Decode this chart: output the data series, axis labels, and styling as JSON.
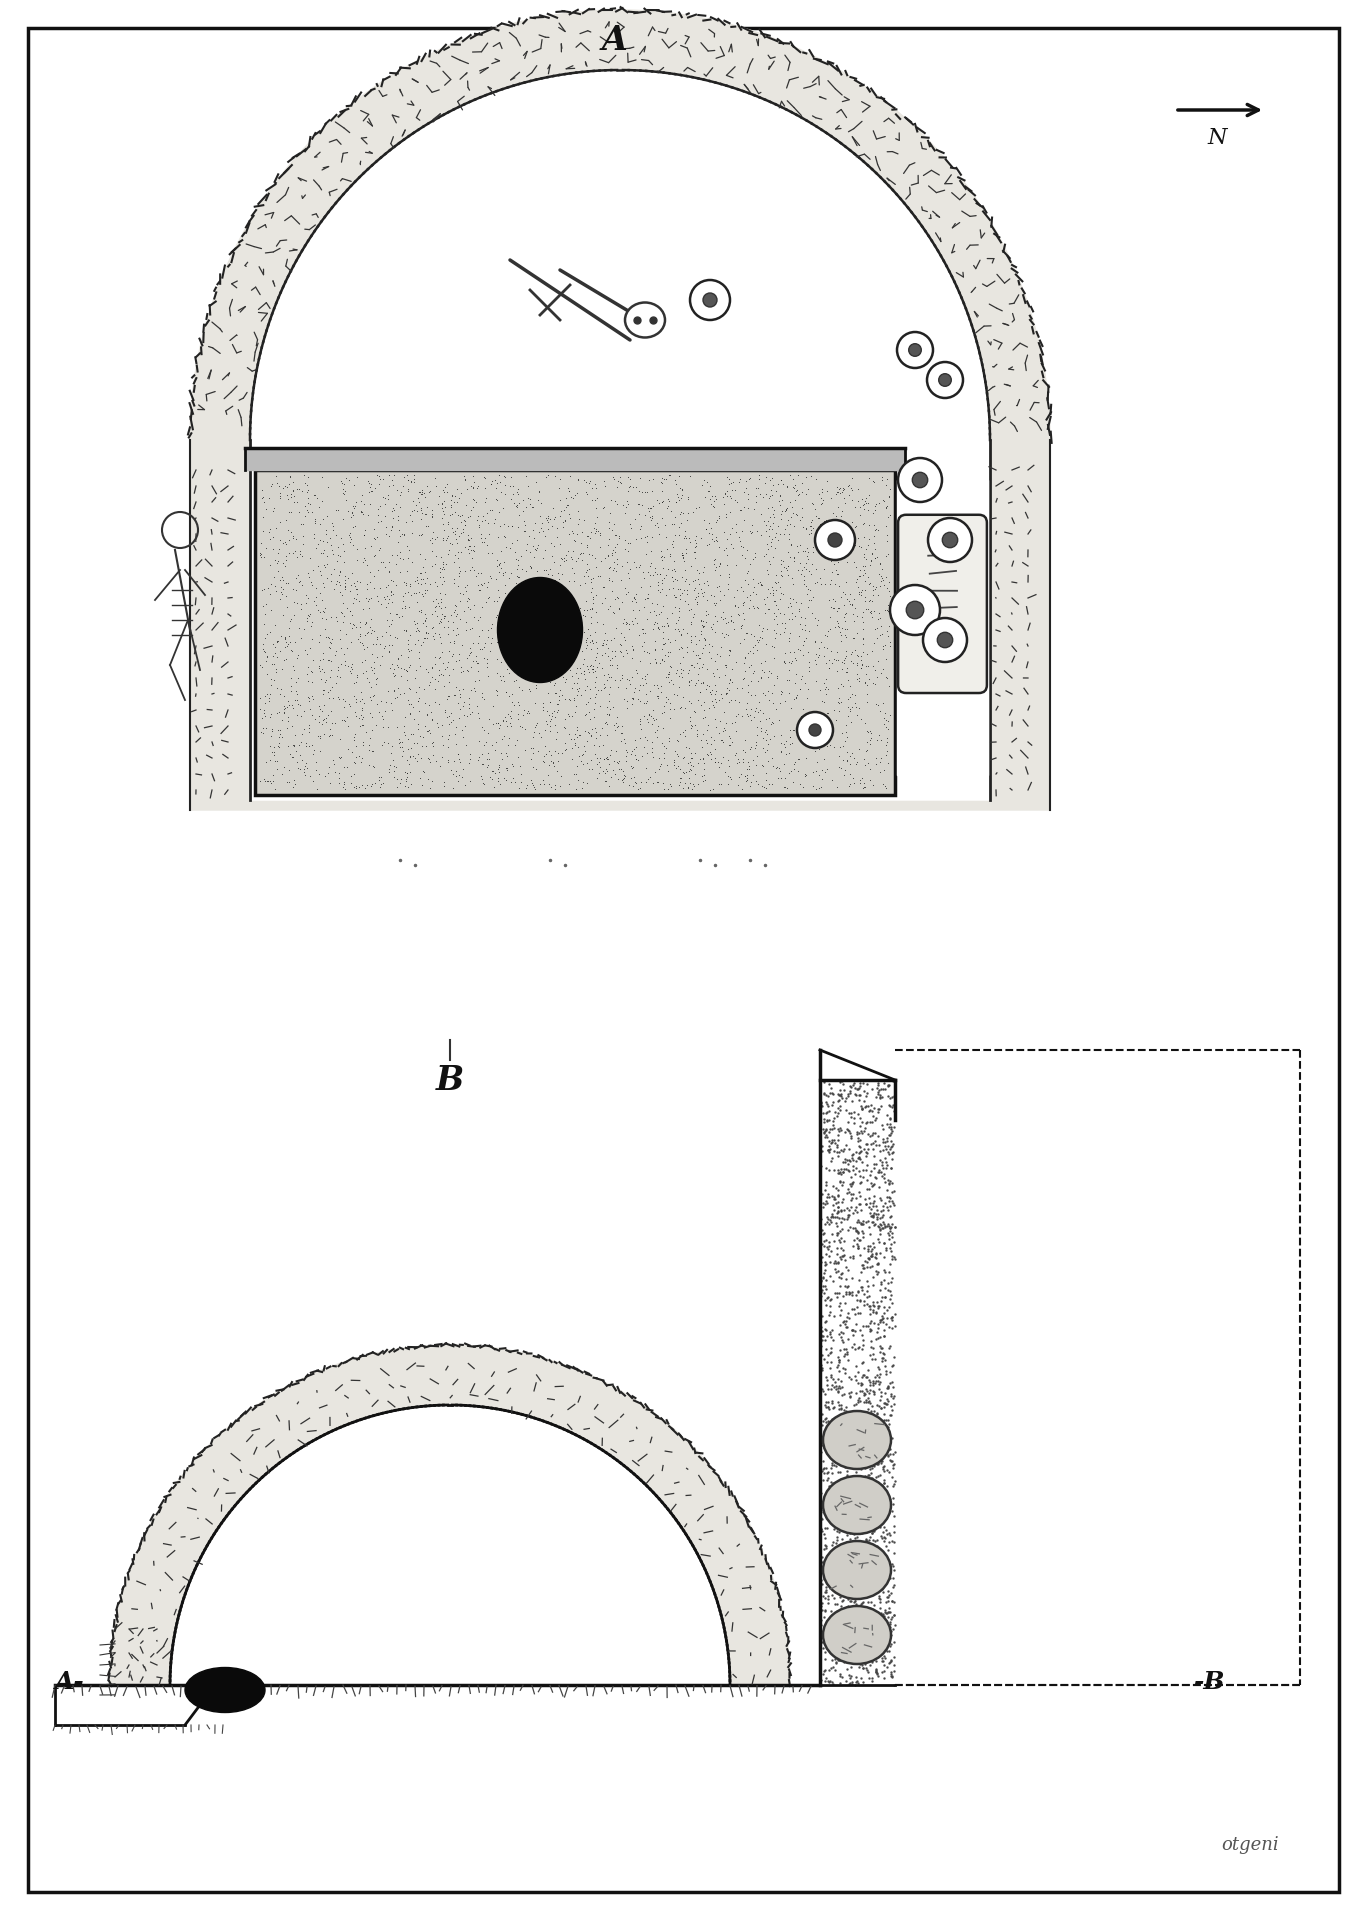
{
  "bg_color": "#ffffff",
  "border_color": "#1a1a1a",
  "rock_fill": "#e8e6e0",
  "pit_fill": "#d5d3cc",
  "label_A": "A",
  "label_B": "B",
  "label_N": "N",
  "label_A_sec": "A-",
  "label_B_sec": "-B",
  "signature": "otgeni"
}
